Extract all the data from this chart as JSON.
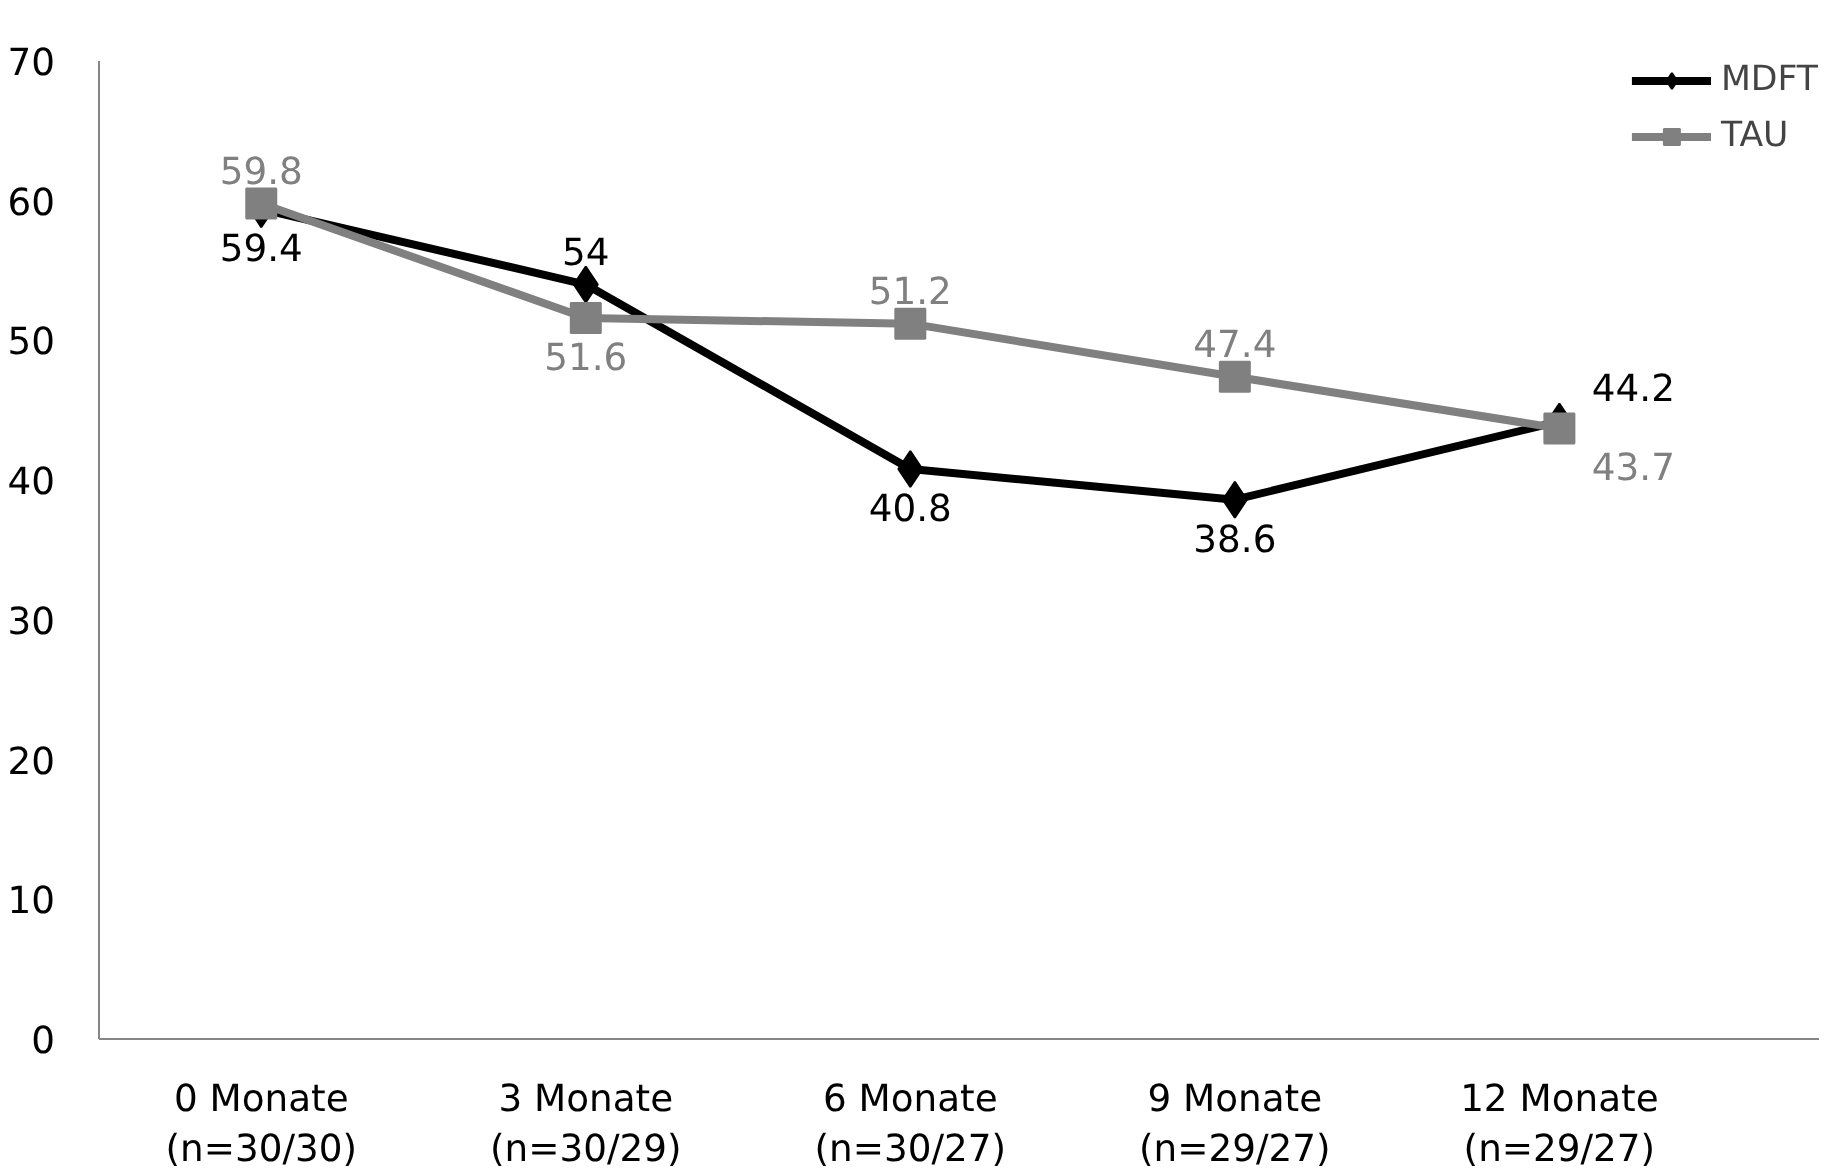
{
  "chart_data": {
    "type": "line",
    "categories": [
      "0 Monate\n(n=30/30)",
      "3 Monate\n(n=30/29)",
      "6 Monate\n(n=30/27)",
      "9 Monate\n(n=29/27)",
      "12 Monate\n(n=29/27)"
    ],
    "series": [
      {
        "name": "MDFT",
        "color": "#000000",
        "marker": "diamond",
        "values": [
          59.4,
          54,
          40.8,
          38.6,
          44.2
        ]
      },
      {
        "name": "TAU",
        "color": "#808080",
        "marker": "square",
        "values": [
          59.8,
          51.6,
          51.2,
          47.4,
          43.7
        ]
      }
    ],
    "ylim": [
      0,
      70
    ],
    "yticks": [
      0,
      10,
      20,
      30,
      40,
      50,
      60,
      70
    ],
    "grid": false,
    "legend": "top right",
    "data_labels": true,
    "line_style": "solid"
  }
}
